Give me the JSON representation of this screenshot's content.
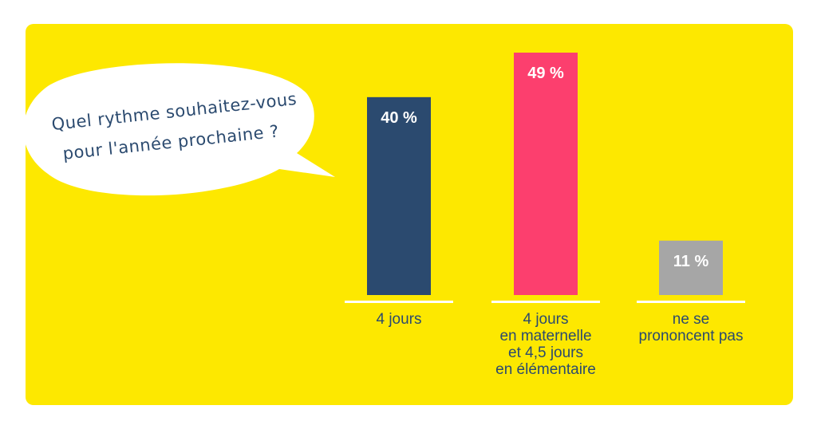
{
  "colors": {
    "background": "#fde800",
    "bubble": "#ffffff",
    "text": "#2b4a6f",
    "baseline": "#ffffff"
  },
  "question": {
    "lines": [
      "Quel rythme souhaitez-vous",
      "pour l'année prochaine ?"
    ]
  },
  "chart_data": {
    "type": "bar",
    "title": "Quel rythme souhaitez-vous pour l'année prochaine ?",
    "categories": [
      [
        "4 jours"
      ],
      [
        "4 jours",
        "en maternelle",
        "et 4,5 jours",
        "en élémentaire"
      ],
      [
        "ne se",
        "prononcent pas"
      ]
    ],
    "values": [
      40,
      49,
      11
    ],
    "value_labels": [
      "40 %",
      "49 %",
      "11 %"
    ],
    "bar_colors": [
      "#2b4a6f",
      "#fc3f6e",
      "#a6a6a6"
    ],
    "ylim": [
      0,
      49
    ],
    "grid": false,
    "legend": "none"
  }
}
